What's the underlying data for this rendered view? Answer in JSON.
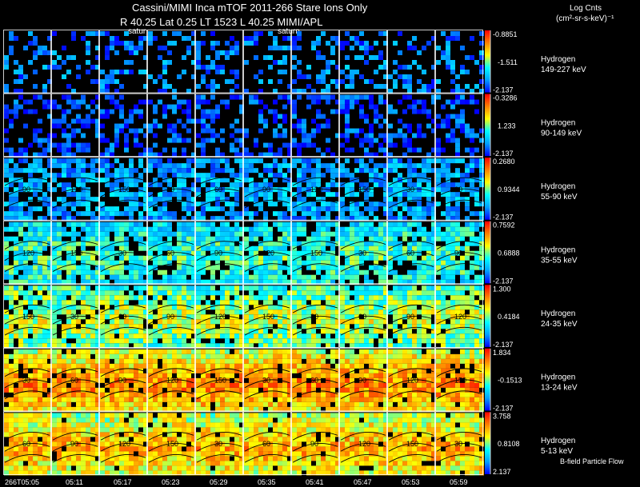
{
  "header": {
    "title_line1": "Cassini/MIMI Inca mTOF  2011-266   Stare   Ions Only",
    "title_line2": "R       40.25 Lat 0.25 LT 1523 L         40.25  MIMI/APL",
    "planet_label": "saturn",
    "planet_label_clipped": "satur",
    "units_title": "Log Cnts",
    "units_line": "(cm²-sr-s-keV)⁻¹"
  },
  "footer": {
    "time_labels": [
      "266T05:05",
      "05:11",
      "05:17",
      "05:23",
      "05:29",
      "05:35",
      "05:41",
      "05:47",
      "05:53",
      "05:59"
    ],
    "legend_note": "B-field Particle Flow"
  },
  "contour_labels": [
    "30",
    "60",
    "90",
    "120",
    "150"
  ],
  "chart_data": {
    "type": "heatmap",
    "title": "Cassini/MIMI Inca mTOF  2011-266   Stare   Ions Only",
    "x_axis": {
      "labels": [
        "266T05:05",
        "05:11",
        "05:17",
        "05:23",
        "05:29",
        "05:35",
        "05:41",
        "05:47",
        "05:53",
        "05:59"
      ]
    },
    "colorbar": {
      "title": "Log Cnts",
      "units": "(cm²-sr-s-keV)⁻¹",
      "colors": [
        "#0000ff",
        "#00a0ff",
        "#00ffff",
        "#ffff00",
        "#ff8000",
        "#ff0000"
      ]
    },
    "rows": [
      {
        "species": "Hydrogen",
        "energy": "149-227 keV",
        "cb_max": "-0.8851",
        "cb_mid": "-1.511",
        "cb_min": "-2.137",
        "level": 0.18,
        "density": 0.32
      },
      {
        "species": "Hydrogen",
        "energy": "90-149 keV",
        "cb_max": "-0.3286",
        "cb_mid": "1.233",
        "cb_min": "-2.137",
        "level": 0.1,
        "density": 0.45
      },
      {
        "species": "Hydrogen",
        "energy": "55-90 keV",
        "cb_max": "0.2680",
        "cb_mid": "0.9344",
        "cb_min": "-2.137",
        "level": 0.26,
        "density": 0.68
      },
      {
        "species": "Hydrogen",
        "energy": "35-55 keV",
        "cb_max": "0.7592",
        "cb_mid": "0.6888",
        "cb_min": "-2.137",
        "level": 0.44,
        "density": 0.84
      },
      {
        "species": "Hydrogen",
        "energy": "24-35 keV",
        "cb_max": "1.300",
        "cb_mid": "0.4184",
        "cb_min": "-2.137",
        "level": 0.58,
        "density": 0.9
      },
      {
        "species": "Hydrogen",
        "energy": "13-24 keV",
        "cb_max": "1.834",
        "cb_mid": "-0.1513",
        "cb_min": "-2.137",
        "level": 0.8,
        "density": 0.93
      },
      {
        "species": "Hydrogen",
        "energy": "5-13 keV",
        "cb_max": "3.758",
        "cb_mid": "0.8108",
        "cb_min": "2.137",
        "level": 0.74,
        "density": 0.95
      }
    ]
  }
}
